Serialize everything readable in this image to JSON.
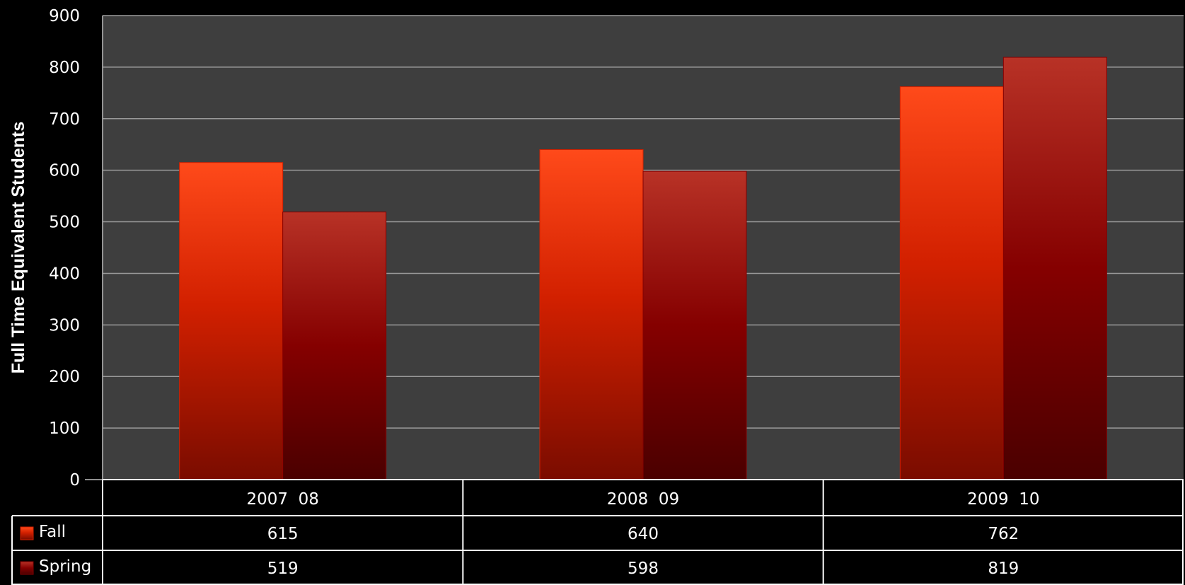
{
  "chart_data": {
    "type": "bar",
    "ylabel": "Full Time Equivalent Students",
    "ylim": [
      0,
      900
    ],
    "ytick_labels": [
      "0",
      "100",
      "200",
      "300",
      "400",
      "500",
      "600",
      "700",
      "800",
      "900"
    ],
    "categories": [
      "2007  08",
      "2008  09",
      "2009  10"
    ],
    "series": [
      {
        "name": "Fall",
        "values": [
          615,
          640,
          762
        ],
        "value_labels": [
          "615",
          "640",
          "762"
        ]
      },
      {
        "name": "Spring",
        "values": [
          519,
          598,
          819
        ],
        "value_labels": [
          "519",
          "598",
          "819"
        ]
      }
    ],
    "grid": true,
    "legend": "data-table",
    "colors": {
      "background": "#000000",
      "plot_area": "#3e3e3e",
      "gridline": "#9a9a9a",
      "fall_top": "#ff4a1a",
      "fall_mid": "#d22000",
      "fall_bottom": "#7a0c00",
      "spring_top": "#b83226",
      "spring_mid": "#850000",
      "spring_bottom": "#4a0000"
    }
  }
}
